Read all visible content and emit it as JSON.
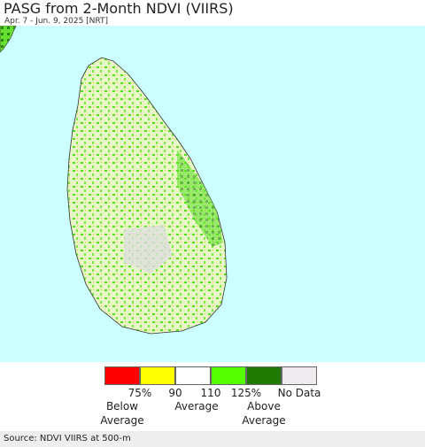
{
  "header": {
    "title": "PASG from 2-Month NDVI (VIIRS)",
    "subtitle": "Apr. 7 - Jun. 9, 2025 [NRT]"
  },
  "legend": {
    "colors": [
      "#ff0000",
      "#ffff00",
      "#ffffff",
      "#55ff00",
      "#1e7a00",
      "#eeeaee"
    ],
    "ticks": [
      "75%",
      "90",
      "110",
      "125%"
    ],
    "no_data": "No Data",
    "groups": [
      "Below Average",
      "Average",
      "Above Average"
    ]
  },
  "footer": {
    "source": "Source: NDVI VIIRS at 500-m"
  }
}
